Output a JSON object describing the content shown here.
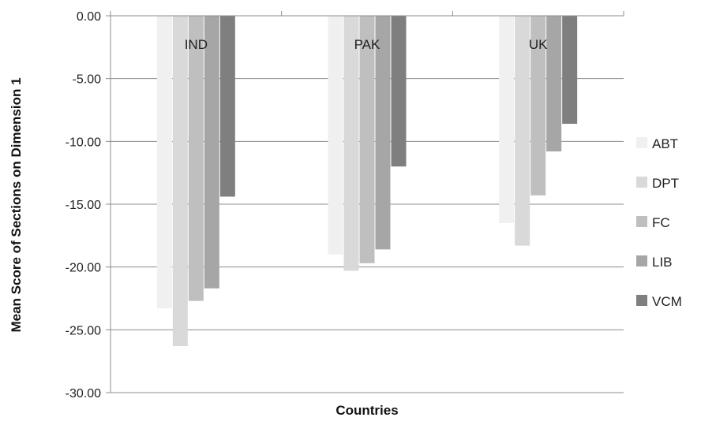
{
  "chart_data": {
    "type": "bar",
    "title": "",
    "xlabel": "Countries",
    "ylabel": "Mean Score of Sections on Dimension 1",
    "ylim": [
      -30,
      0
    ],
    "yticks": [
      "0.00",
      "-5.00",
      "-10.00",
      "-15.00",
      "-20.00",
      "-25.00",
      "-30.00"
    ],
    "ytick_values": [
      0,
      -5,
      -10,
      -15,
      -20,
      -25,
      -30
    ],
    "categories": [
      "IND",
      "PAK",
      "UK"
    ],
    "series": [
      {
        "name": "ABT",
        "values": [
          -23.3,
          -19.0,
          -16.5
        ],
        "color": "#f0f0f0"
      },
      {
        "name": "DPT",
        "values": [
          -26.3,
          -20.3,
          -18.3
        ],
        "color": "#d9d9d9"
      },
      {
        "name": "FC",
        "values": [
          -22.7,
          -19.7,
          -14.3
        ],
        "color": "#bfbfbf"
      },
      {
        "name": "LIB",
        "values": [
          -21.7,
          -18.6,
          -10.8
        ],
        "color": "#a6a6a6"
      },
      {
        "name": "VCM",
        "values": [
          -14.4,
          -12.0,
          -8.6
        ],
        "color": "#7f7f7f"
      }
    ],
    "grid": true,
    "legend_position": "right"
  }
}
